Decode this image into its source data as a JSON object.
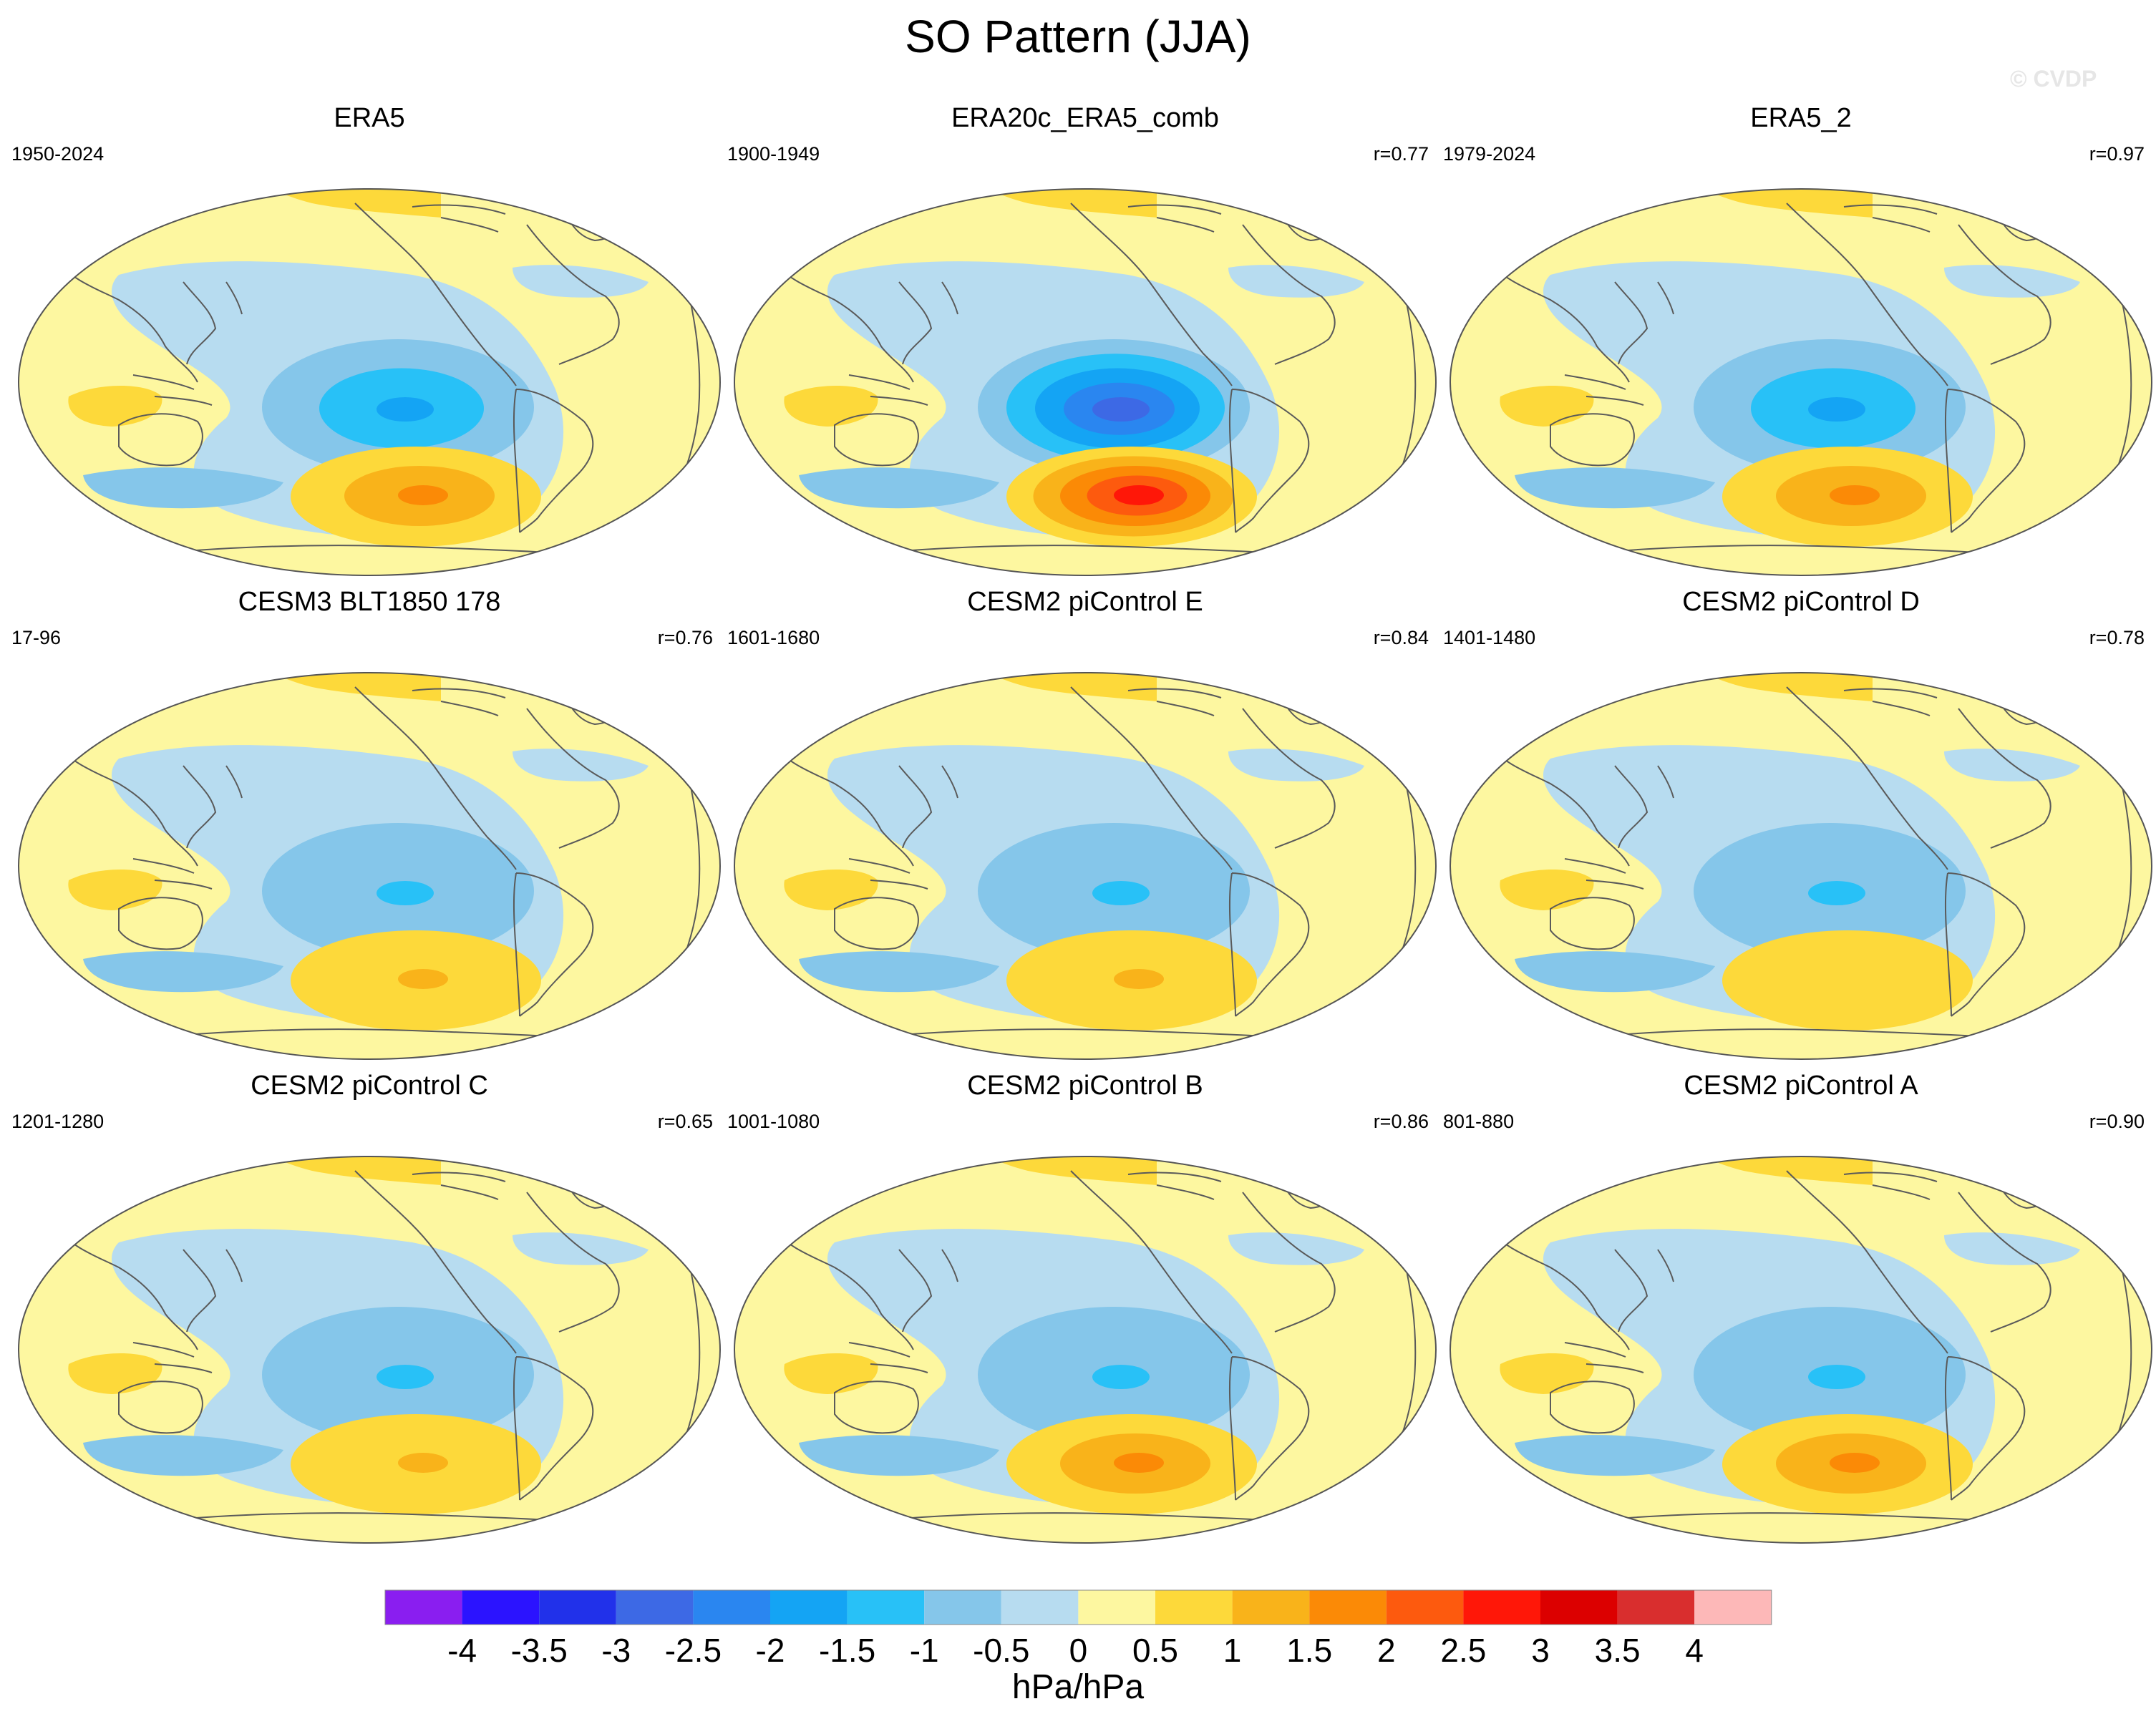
{
  "title": "SO Pattern (JJA)",
  "watermark": "© CVDP",
  "colors": {
    "ocean_neutral": "#fdf7a0",
    "coast": "#5a5a5a",
    "neg_light": "#b7dcf0",
    "neg_mid": "#85c6ea",
    "pos_light": "#fdd93a"
  },
  "chart_data": {
    "type": "heatmap",
    "title": "SO Pattern (JJA)",
    "projection": "Robinson (global)",
    "units": "hPa/hPa",
    "colorbar": {
      "labels": [
        "-4",
        "-3.5",
        "-3",
        "-2.5",
        "-2",
        "-1.5",
        "-1",
        "-0.5",
        "0",
        "0.5",
        "1",
        "1.5",
        "2",
        "2.5",
        "3",
        "3.5",
        "4"
      ],
      "colors": [
        "#8a1ef0",
        "#2b13ff",
        "#2131ea",
        "#3d69e5",
        "#2a86f0",
        "#14a4f4",
        "#28c1f7",
        "#85c6ea",
        "#b7dcf0",
        "#fdf7a0",
        "#fdd93a",
        "#f9b31a",
        "#fb8a06",
        "#fd5a0e",
        "#ff1708",
        "#dc0000",
        "#d92e2e",
        "#fdb8b8"
      ]
    },
    "panels": [
      {
        "title": "ERA5",
        "years": "1950-2024",
        "r": "",
        "low_min": -2.0,
        "high_max": 2.0
      },
      {
        "title": "ERA20c_ERA5_comb",
        "years": "1900-1949",
        "r": "r=0.77",
        "low_min": -3.0,
        "high_max": 3.0
      },
      {
        "title": "ERA5_2",
        "years": "1979-2024",
        "r": "r=0.97",
        "low_min": -2.0,
        "high_max": 2.0
      },
      {
        "title": "CESM3 BLT1850 178",
        "years": "17-96",
        "r": "r=0.76",
        "low_min": -1.5,
        "high_max": 1.5
      },
      {
        "title": "CESM2 piControl E",
        "years": "1601-1680",
        "r": "r=0.84",
        "low_min": -1.5,
        "high_max": 1.5
      },
      {
        "title": "CESM2 piControl D",
        "years": "1401-1480",
        "r": "r=0.78",
        "low_min": -1.5,
        "high_max": 1.0
      },
      {
        "title": "CESM2 piControl C",
        "years": "1201-1280",
        "r": "r=0.65",
        "low_min": -1.5,
        "high_max": 1.5
      },
      {
        "title": "CESM2 piControl B",
        "years": "1001-1080",
        "r": "r=0.86",
        "low_min": -1.5,
        "high_max": 2.0
      },
      {
        "title": "CESM2 piControl A",
        "years": "801-880",
        "r": "r=0.90",
        "low_min": -1.5,
        "high_max": 2.0
      }
    ]
  }
}
